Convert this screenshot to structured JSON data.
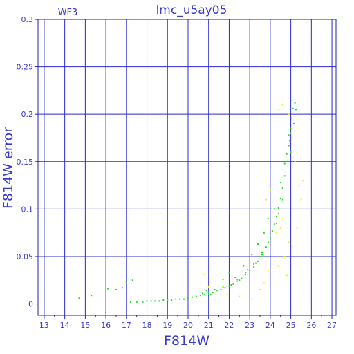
{
  "chart_data": {
    "type": "scatter",
    "title": "lmc_u5ay05",
    "corner_label": "WF3",
    "xlabel": "F814W",
    "ylabel": "F814W error",
    "xlim": [
      12.7,
      27.2
    ],
    "ylim": [
      -0.012,
      0.3
    ],
    "x_ticks": [
      13,
      14,
      15,
      16,
      17,
      18,
      19,
      20,
      21,
      22,
      23,
      24,
      25,
      26,
      27
    ],
    "y_ticks": [
      0,
      0.05,
      0.1,
      0.15,
      0.2,
      0.25,
      0.3
    ],
    "y_tick_labels": [
      "0",
      "0.05",
      "0.1",
      "0.15",
      "0.2",
      "0.25",
      "0.3"
    ],
    "grid": true,
    "colors": {
      "axes": "#2222aa",
      "grid": "#2a2ad0",
      "text": "#3a3acc",
      "main_series": "#22dd22",
      "outlier_series": "#eeee22"
    },
    "series": [
      {
        "color": "#22dd22",
        "points": [
          [
            14.7,
            0.006
          ],
          [
            15.3,
            0.009
          ],
          [
            16.1,
            0.016
          ],
          [
            16.5,
            0.015
          ],
          [
            16.8,
            0.017
          ],
          [
            17.0,
            0.022
          ],
          [
            17.3,
            0.025
          ],
          [
            17.2,
            0.002
          ],
          [
            17.5,
            0.002
          ],
          [
            17.8,
            0.002
          ],
          [
            18.0,
            0.003
          ],
          [
            18.2,
            0.003
          ],
          [
            18.4,
            0.003
          ],
          [
            18.6,
            0.003
          ],
          [
            18.8,
            0.004
          ],
          [
            19.0,
            0.004
          ],
          [
            19.2,
            0.004
          ],
          [
            19.4,
            0.005
          ],
          [
            19.6,
            0.005
          ],
          [
            19.8,
            0.005
          ],
          [
            20.0,
            0.006
          ],
          [
            20.2,
            0.007
          ],
          [
            20.4,
            0.008
          ],
          [
            20.6,
            0.009
          ],
          [
            20.8,
            0.01
          ],
          [
            21.0,
            0.011
          ],
          [
            21.2,
            0.012
          ],
          [
            21.4,
            0.014
          ],
          [
            21.6,
            0.015
          ],
          [
            21.8,
            0.017
          ],
          [
            22.0,
            0.019
          ],
          [
            22.2,
            0.021
          ],
          [
            22.4,
            0.024
          ],
          [
            22.6,
            0.027
          ],
          [
            22.8,
            0.031
          ],
          [
            23.0,
            0.035
          ],
          [
            23.2,
            0.039
          ],
          [
            23.4,
            0.045
          ],
          [
            23.6,
            0.052
          ],
          [
            23.8,
            0.06
          ],
          [
            24.0,
            0.07
          ],
          [
            24.1,
            0.077
          ],
          [
            24.2,
            0.084
          ],
          [
            24.3,
            0.092
          ],
          [
            24.4,
            0.101
          ],
          [
            24.5,
            0.111
          ],
          [
            24.6,
            0.122
          ],
          [
            24.7,
            0.135
          ],
          [
            24.8,
            0.15
          ],
          [
            24.9,
            0.167
          ],
          [
            25.0,
            0.185
          ],
          [
            25.05,
            0.196
          ],
          [
            25.1,
            0.206
          ],
          [
            25.2,
            0.212
          ],
          [
            25.25,
            0.205
          ],
          [
            21.7,
            0.026
          ],
          [
            22.0,
            0.033
          ],
          [
            22.3,
            0.028
          ],
          [
            22.7,
            0.04
          ],
          [
            23.1,
            0.052
          ],
          [
            23.4,
            0.063
          ],
          [
            23.7,
            0.075
          ],
          [
            23.9,
            0.09
          ],
          [
            24.2,
            0.1
          ],
          [
            24.5,
            0.128
          ],
          [
            24.7,
            0.148
          ],
          [
            24.9,
            0.178
          ],
          [
            25.0,
            0.16
          ],
          [
            24.6,
            0.11
          ],
          [
            24.3,
            0.085
          ],
          [
            23.9,
            0.065
          ],
          [
            23.5,
            0.05
          ],
          [
            23.2,
            0.042
          ],
          [
            22.9,
            0.036
          ],
          [
            22.5,
            0.025
          ],
          [
            22.1,
            0.02
          ],
          [
            21.7,
            0.018
          ],
          [
            21.3,
            0.015
          ],
          [
            20.9,
            0.014
          ],
          [
            21.1,
            0.01
          ],
          [
            24.8,
            0.158
          ],
          [
            24.95,
            0.172
          ],
          [
            25.15,
            0.19
          ],
          [
            24.4,
            0.095
          ],
          [
            24.0,
            0.074
          ],
          [
            23.6,
            0.054
          ],
          [
            23.3,
            0.043
          ],
          [
            22.8,
            0.033
          ],
          [
            22.4,
            0.026
          ],
          [
            20.7,
            0.011
          ]
        ]
      },
      {
        "color": "#eeee22",
        "points": [
          [
            20.8,
            0.031
          ],
          [
            21.0,
            0.018
          ],
          [
            21.9,
            0.01
          ],
          [
            22.5,
            0.008
          ],
          [
            23.1,
            0.005
          ],
          [
            23.5,
            0.015
          ],
          [
            23.7,
            0.022
          ],
          [
            23.9,
            0.035
          ],
          [
            24.2,
            0.045
          ],
          [
            24.4,
            0.04
          ],
          [
            24.7,
            0.05
          ],
          [
            24.9,
            0.065
          ],
          [
            24.3,
            0.075
          ],
          [
            24.6,
            0.09
          ],
          [
            25.3,
            0.1
          ],
          [
            25.4,
            0.125
          ],
          [
            25.2,
            0.15
          ],
          [
            25.6,
            0.13
          ],
          [
            25.0,
            0.18
          ],
          [
            24.9,
            0.2
          ],
          [
            25.1,
            0.215
          ],
          [
            24.6,
            0.21
          ],
          [
            24.4,
            0.205
          ],
          [
            24.0,
            0.12
          ],
          [
            23.8,
            0.11
          ],
          [
            24.5,
            0.08
          ],
          [
            23.6,
            0.055
          ],
          [
            25.3,
            0.08
          ],
          [
            25.5,
            0.11
          ],
          [
            24.8,
            0.03
          ]
        ]
      }
    ]
  }
}
